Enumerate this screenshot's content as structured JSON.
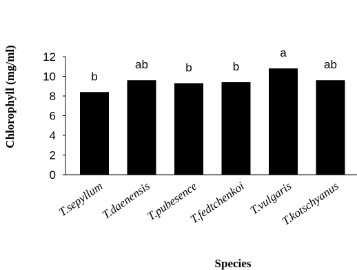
{
  "chart_data": {
    "type": "bar",
    "title": "",
    "xlabel": "Species",
    "ylabel": "Chlorophyll (mg/ml)",
    "categories": [
      "T.sepyllum",
      "T.daenensis",
      "T.pubesence",
      "T.fedtchenkoi",
      "T.vulgaris",
      "T.kotschyanus"
    ],
    "values": [
      8.4,
      9.6,
      9.3,
      9.4,
      10.8,
      9.6
    ],
    "bar_labels": [
      "b",
      "ab",
      "b",
      "b",
      "a",
      "ab"
    ],
    "ylim": [
      0,
      12
    ],
    "yticks": [
      "0",
      "2",
      "4",
      "6",
      "8",
      "10",
      "12"
    ],
    "grid": false,
    "bar_color": "#000000"
  }
}
